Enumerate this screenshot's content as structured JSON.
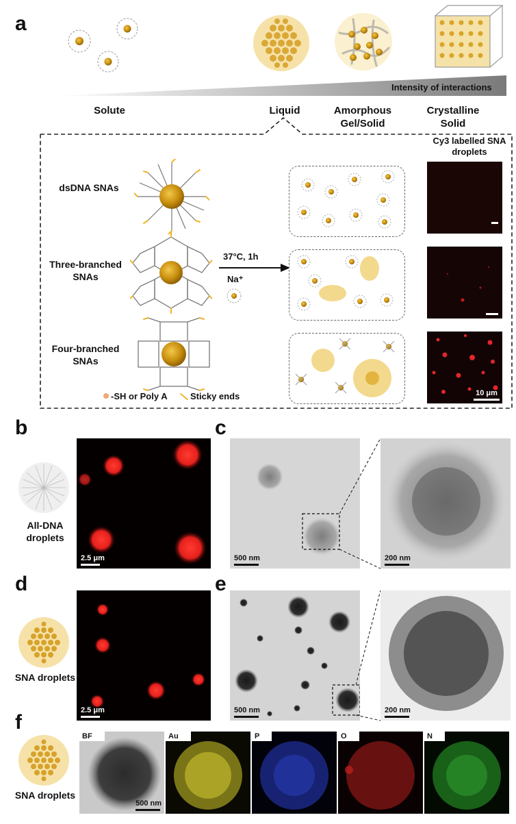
{
  "panel_labels": {
    "a": "a",
    "b": "b",
    "c": "c",
    "d": "d",
    "e": "e",
    "f": "f"
  },
  "panel_a": {
    "gradient_label": "Intensity of interactions",
    "states": [
      "Solute",
      "Liquid",
      "Amorphous Gel/Solid",
      "Crystalline Solid"
    ],
    "rows": [
      "dsDNA SNAs",
      "Three-branched SNAs",
      "Four-branched SNAs"
    ],
    "condition": "37°C, 1h",
    "ion": "Na⁺",
    "image_column_header": "Cy3 labelled SNA droplets",
    "legend": {
      "thiol": "-SH or Poly A",
      "sticky": "Sticky ends"
    },
    "scale_bar": "10 μm",
    "colors": {
      "gold": "#c9920f",
      "gold_light": "#e9c35a",
      "red": "#e3262a"
    }
  },
  "panel_b": {
    "caption": "All-DNA droplets",
    "scale_bar": "2.5 μm"
  },
  "panel_c": {
    "scale_left": "500 nm",
    "scale_right": "200 nm"
  },
  "panel_d": {
    "caption": "SNA droplets",
    "scale_bar": "2.5 μm"
  },
  "panel_e": {
    "scale_left": "500 nm",
    "scale_right": "200 nm"
  },
  "panel_f": {
    "caption": "SNA droplets",
    "maps": [
      {
        "label": "BF",
        "color": "#888888"
      },
      {
        "label": "Au",
        "color": "#d6cc2a"
      },
      {
        "label": "P",
        "color": "#2a3fc8"
      },
      {
        "label": "O",
        "color": "#c42020"
      },
      {
        "label": "N",
        "color": "#2ea82e"
      }
    ],
    "scale_bar": "500 nm"
  }
}
